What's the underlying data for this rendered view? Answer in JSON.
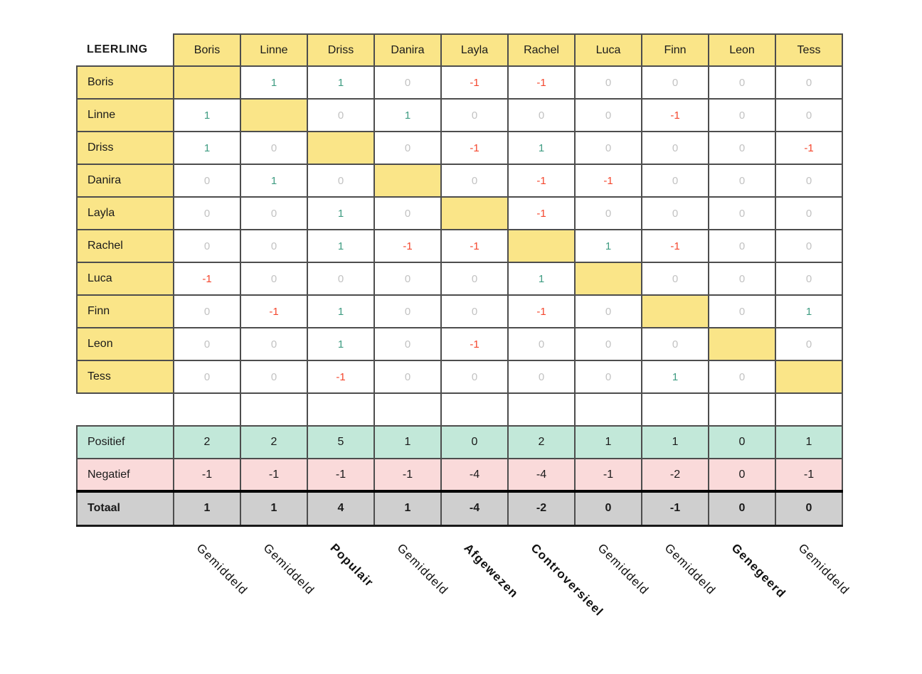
{
  "chart_data": {
    "type": "table",
    "corner_label": "LEERLING",
    "columns": [
      "Boris",
      "Linne",
      "Driss",
      "Danira",
      "Layla",
      "Rachel",
      "Luca",
      "Finn",
      "Leon",
      "Tess"
    ],
    "rows": [
      {
        "name": "Boris",
        "values": [
          null,
          1,
          1,
          0,
          -1,
          -1,
          0,
          0,
          0,
          0
        ]
      },
      {
        "name": "Linne",
        "values": [
          1,
          null,
          0,
          1,
          0,
          0,
          0,
          -1,
          0,
          0
        ]
      },
      {
        "name": "Driss",
        "values": [
          1,
          0,
          null,
          0,
          -1,
          1,
          0,
          0,
          0,
          -1
        ]
      },
      {
        "name": "Danira",
        "values": [
          0,
          1,
          0,
          null,
          0,
          -1,
          -1,
          0,
          0,
          0
        ]
      },
      {
        "name": "Layla",
        "values": [
          0,
          0,
          1,
          0,
          null,
          -1,
          0,
          0,
          0,
          0
        ]
      },
      {
        "name": "Rachel",
        "values": [
          0,
          0,
          1,
          -1,
          -1,
          null,
          1,
          -1,
          0,
          0
        ]
      },
      {
        "name": "Luca",
        "values": [
          -1,
          0,
          0,
          0,
          0,
          1,
          null,
          0,
          0,
          0
        ]
      },
      {
        "name": "Finn",
        "values": [
          0,
          -1,
          1,
          0,
          0,
          -1,
          0,
          null,
          0,
          1
        ]
      },
      {
        "name": "Leon",
        "values": [
          0,
          0,
          1,
          0,
          -1,
          0,
          0,
          0,
          null,
          0
        ]
      },
      {
        "name": "Tess",
        "values": [
          0,
          0,
          -1,
          0,
          0,
          0,
          0,
          1,
          0,
          null
        ]
      }
    ],
    "positief": {
      "label": "Positief",
      "values": [
        2,
        2,
        5,
        1,
        0,
        2,
        1,
        1,
        0,
        1
      ]
    },
    "negatief": {
      "label": "Negatief",
      "values": [
        -1,
        -1,
        -1,
        -1,
        -4,
        -4,
        -1,
        -2,
        0,
        -1
      ]
    },
    "totaal": {
      "label": "Totaal",
      "values": [
        1,
        1,
        4,
        1,
        -4,
        -2,
        0,
        -1,
        0,
        0
      ]
    },
    "classifications": [
      {
        "label": "Gemiddeld",
        "bold": false
      },
      {
        "label": "Gemiddeld",
        "bold": false
      },
      {
        "label": "Populair",
        "bold": true
      },
      {
        "label": "Gemiddeld",
        "bold": false
      },
      {
        "label": "Afgewezen",
        "bold": true
      },
      {
        "label": "Controversieel",
        "bold": true
      },
      {
        "label": "Gemiddeld",
        "bold": false
      },
      {
        "label": "Gemiddeld",
        "bold": false
      },
      {
        "label": "Genegeerd",
        "bold": true
      },
      {
        "label": "Gemiddeld",
        "bold": false
      }
    ]
  },
  "colors": {
    "cell_yellow": "#FAE588",
    "positive_text": "#3F9C82",
    "negative_text": "#F4472E",
    "zero_text": "#C2C2C2",
    "positief_bg": "#C2E8D9",
    "negatief_bg": "#FADADA",
    "totaal_bg": "#CFCFCF",
    "grid_border": "#4D4D4D",
    "text": "#1A1A1A"
  }
}
